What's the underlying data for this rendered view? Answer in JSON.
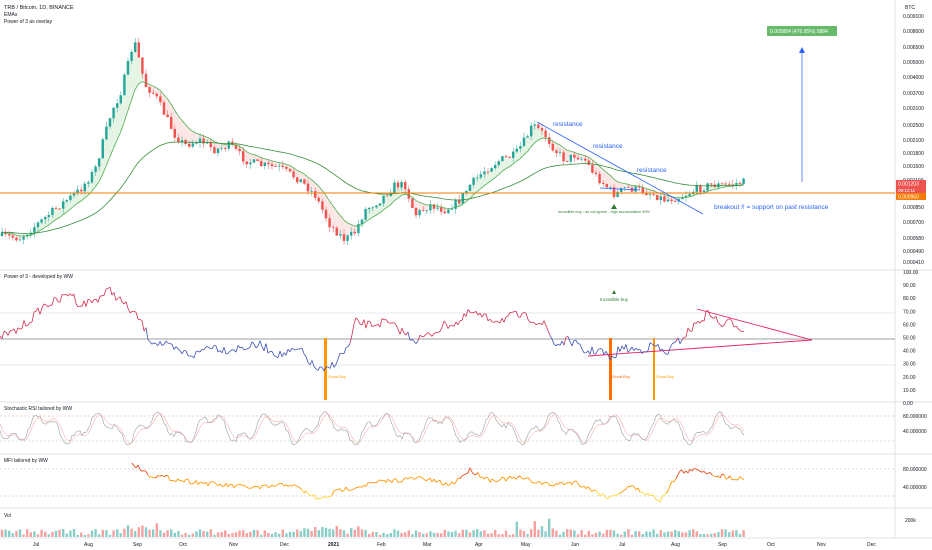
{
  "header": {
    "symbol_line": "TRB / Bitcoin, 1D, BINANCE",
    "overlay1": "EMAs",
    "overlay2": "Power of 3 as overlay",
    "currency": "BTC"
  },
  "x_axis": {
    "labels": [
      "Jul",
      "Aug",
      "Sep",
      "Oct",
      "Nov",
      "Dec",
      "2021",
      "Feb",
      "Mar",
      "Apr",
      "May",
      "Jun",
      "Jul",
      "Aug",
      "Sep",
      "Oct",
      "Nov",
      "Dec"
    ]
  },
  "price_axis": {
    "ticks": [
      "0.009100",
      "0.008000",
      "0.006500",
      "0.005000",
      "0.004000",
      "0.003700",
      "0.003100",
      "0.002500",
      "0.002100",
      "0.001800",
      "0.001500",
      "0.001100",
      "0.000850",
      "0.000700",
      "0.000580",
      "0.000490",
      "0.000410"
    ]
  },
  "price_badges": {
    "current": "0.001203",
    "countdown": "09:12:11",
    "support": "0.000950"
  },
  "annotations": {
    "target_box": "0.005884 (476.95%) 5884",
    "resistance1": "resistance",
    "resistance2": "resistance",
    "resistance3": "resistance",
    "incredible_note": "Incredible buy - do not ignore - high accumulation 99%",
    "breakout": "breakout !! = support on past resistance"
  },
  "power3": {
    "title": "Power of 3 - developed by WW",
    "ticks": [
      "100.00",
      "90.00",
      "80.00",
      "70.00",
      "60.00",
      "50.00",
      "40.00",
      "30.00",
      "20.00",
      "10.00",
      "0.00"
    ],
    "incredible_buy": "Incredible buy",
    "great_buy1": "Great Buy",
    "great_buy2": "Great Buy",
    "great_buy3": "Great Buy"
  },
  "stoch": {
    "title": "Stochastic RSI tailored by WW",
    "ticks": [
      "80.000000",
      "40.000000"
    ]
  },
  "mfi": {
    "title": "MFI tailored by WW",
    "ticks": [
      "80.000000",
      "40.000000"
    ]
  },
  "vol": {
    "title": "Vol",
    "tick": "200k"
  },
  "colors": {
    "up": "#26a69a",
    "down": "#ef5350",
    "ema_fast": "#4caf50",
    "ema_slow": "#43a047",
    "support_line": "#f57c00",
    "trend_blue": "#2962ff",
    "target": "#66bb6a",
    "pink": "#e91e63"
  },
  "chart_data": {
    "type": "candlestick",
    "x_range": [
      "Jul 2020",
      "Dec 2021"
    ],
    "price_series_approx": [
      [
        "Jul 2020",
        0.00058
      ],
      [
        "Aug 2020",
        0.0011
      ],
      [
        "Sep 2020",
        0.0068
      ],
      [
        "Oct 2020",
        0.0021
      ],
      [
        "Nov 2020",
        0.0015
      ],
      [
        "Dec 2020",
        0.0008
      ],
      [
        "Jan 2021",
        0.00055
      ],
      [
        "Feb 2021",
        0.0011
      ],
      [
        "Mar 2021",
        0.0009
      ],
      [
        "Apr 2021",
        0.0013
      ],
      [
        "May 2021",
        0.0024
      ],
      [
        "Jun 2021",
        0.0015
      ],
      [
        "Jul 2021",
        0.0009
      ],
      [
        "Aug 2021",
        0.001
      ],
      [
        "Sep 2021",
        0.0012
      ]
    ],
    "support_level": 0.00095,
    "target_level": 0.005884
  }
}
